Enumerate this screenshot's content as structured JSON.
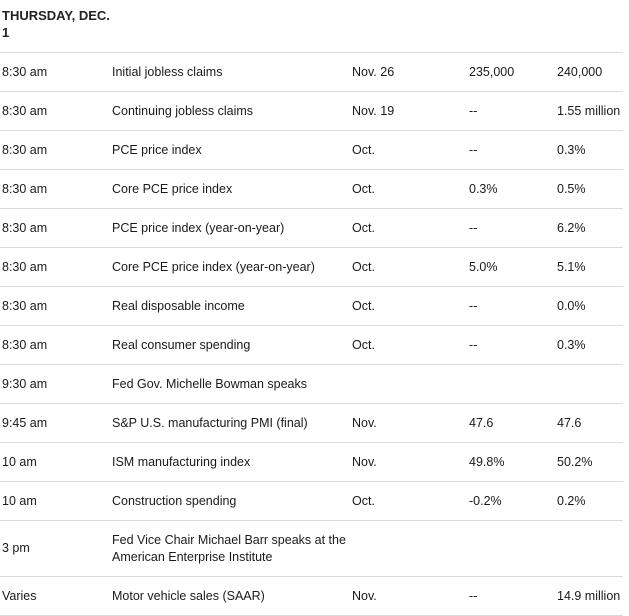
{
  "heading": "THURSDAY, DEC. 1",
  "rows": [
    {
      "time": "8:30 am",
      "event": "Initial jobless claims",
      "period": "Nov. 26",
      "forecast": "235,000",
      "previous": "240,000"
    },
    {
      "time": "8:30 am",
      "event": "Continuing jobless claims",
      "period": "Nov. 19",
      "forecast": "--",
      "previous": "1.55 million"
    },
    {
      "time": "8:30 am",
      "event": "PCE price index",
      "period": "Oct.",
      "forecast": "--",
      "previous": "0.3%"
    },
    {
      "time": "8:30 am",
      "event": "Core PCE price index",
      "period": "Oct.",
      "forecast": "0.3%",
      "previous": "0.5%"
    },
    {
      "time": "8:30 am",
      "event": "PCE price index (year-on-year)",
      "period": "Oct.",
      "forecast": "--",
      "previous": "6.2%"
    },
    {
      "time": "8:30 am",
      "event": "Core PCE price index (year-on-year)",
      "period": "Oct.",
      "forecast": "5.0%",
      "previous": "5.1%"
    },
    {
      "time": "8:30 am",
      "event": "Real disposable income",
      "period": "Oct.",
      "forecast": "--",
      "previous": "0.0%"
    },
    {
      "time": "8:30 am",
      "event": "Real consumer spending",
      "period": "Oct.",
      "forecast": "--",
      "previous": "0.3%"
    },
    {
      "time": "9:30 am",
      "event": "Fed Gov. Michelle Bowman speaks",
      "period": "",
      "forecast": "",
      "previous": ""
    },
    {
      "time": "9:45 am",
      "event": "S&P U.S. manufacturing PMI (final)",
      "period": "Nov.",
      "forecast": "47.6",
      "previous": "47.6"
    },
    {
      "time": "10 am",
      "event": "ISM manufacturing index",
      "period": "Nov.",
      "forecast": "49.8%",
      "previous": "50.2%"
    },
    {
      "time": "10 am",
      "event": "Construction spending",
      "period": "Oct.",
      "forecast": "-0.2%",
      "previous": "0.2%"
    },
    {
      "time": "3 pm",
      "event": "Fed Vice Chair Michael Barr speaks at the American Enterprise Institute",
      "period": "",
      "forecast": "",
      "previous": ""
    },
    {
      "time": "Varies",
      "event": "Motor vehicle sales (SAAR)",
      "period": "Nov.",
      "forecast": "--",
      "previous": "14.9 million"
    }
  ]
}
